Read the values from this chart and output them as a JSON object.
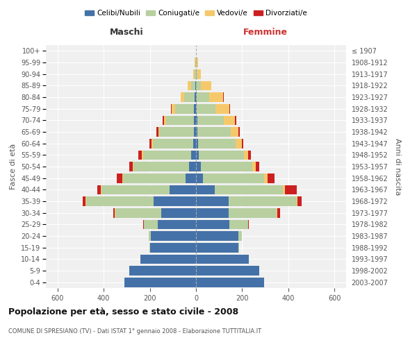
{
  "age_groups": [
    "0-4",
    "5-9",
    "10-14",
    "15-19",
    "20-24",
    "25-29",
    "30-34",
    "35-39",
    "40-44",
    "45-49",
    "50-54",
    "55-59",
    "60-64",
    "65-69",
    "70-74",
    "75-79",
    "80-84",
    "85-89",
    "90-94",
    "95-99",
    "100+"
  ],
  "birth_years": [
    "2003-2007",
    "1998-2002",
    "1993-1997",
    "1988-1992",
    "1983-1987",
    "1978-1982",
    "1973-1977",
    "1968-1972",
    "1963-1967",
    "1958-1962",
    "1953-1957",
    "1948-1952",
    "1943-1947",
    "1938-1942",
    "1933-1937",
    "1928-1932",
    "1923-1927",
    "1918-1922",
    "1913-1917",
    "1908-1912",
    "≤ 1907"
  ],
  "maschi": {
    "celibi": [
      310,
      290,
      240,
      200,
      195,
      165,
      150,
      185,
      115,
      45,
      30,
      20,
      12,
      8,
      8,
      10,
      5,
      3,
      1,
      1,
      0
    ],
    "coniugati": [
      0,
      0,
      0,
      2,
      10,
      60,
      200,
      290,
      295,
      270,
      240,
      210,
      175,
      150,
      120,
      80,
      45,
      18,
      5,
      3,
      1
    ],
    "vedovi": [
      0,
      0,
      0,
      0,
      0,
      1,
      1,
      2,
      3,
      3,
      4,
      4,
      5,
      5,
      10,
      15,
      15,
      15,
      5,
      2,
      0
    ],
    "divorziati": [
      0,
      0,
      0,
      0,
      0,
      2,
      8,
      15,
      15,
      25,
      15,
      15,
      10,
      10,
      5,
      2,
      2,
      0,
      0,
      0,
      0
    ]
  },
  "femmine": {
    "nubili": [
      295,
      275,
      230,
      185,
      185,
      145,
      140,
      140,
      80,
      30,
      20,
      12,
      8,
      5,
      5,
      4,
      2,
      1,
      1,
      0,
      0
    ],
    "coniugate": [
      0,
      0,
      0,
      2,
      15,
      80,
      210,
      295,
      295,
      265,
      225,
      195,
      165,
      145,
      115,
      80,
      55,
      20,
      5,
      3,
      1
    ],
    "vedove": [
      0,
      0,
      0,
      0,
      0,
      2,
      3,
      5,
      10,
      15,
      15,
      18,
      25,
      35,
      50,
      60,
      60,
      45,
      15,
      5,
      0
    ],
    "divorziate": [
      0,
      0,
      0,
      0,
      0,
      2,
      10,
      18,
      50,
      30,
      15,
      12,
      8,
      5,
      5,
      2,
      2,
      0,
      0,
      0,
      0
    ]
  },
  "colors": {
    "celibi": "#4472a8",
    "coniugati": "#b8cfa0",
    "vedovi": "#f5c96b",
    "divorziati": "#cc2020"
  },
  "legend_labels": [
    "Celibi/Nubili",
    "Coniugati/e",
    "Vedovi/e",
    "Divorziati/e"
  ],
  "title": "Popolazione per età, sesso e stato civile - 2008",
  "subtitle": "COMUNE DI SPRESIANO (TV) - Dati ISTAT 1° gennaio 2008 - Elaborazione TUTTITALIA.IT",
  "xlabel_left": "Maschi",
  "xlabel_right": "Femmine",
  "ylabel_left": "Fasce di età",
  "ylabel_right": "Anni di nascita",
  "xlim": 650,
  "background_color": "#f0f0f0"
}
